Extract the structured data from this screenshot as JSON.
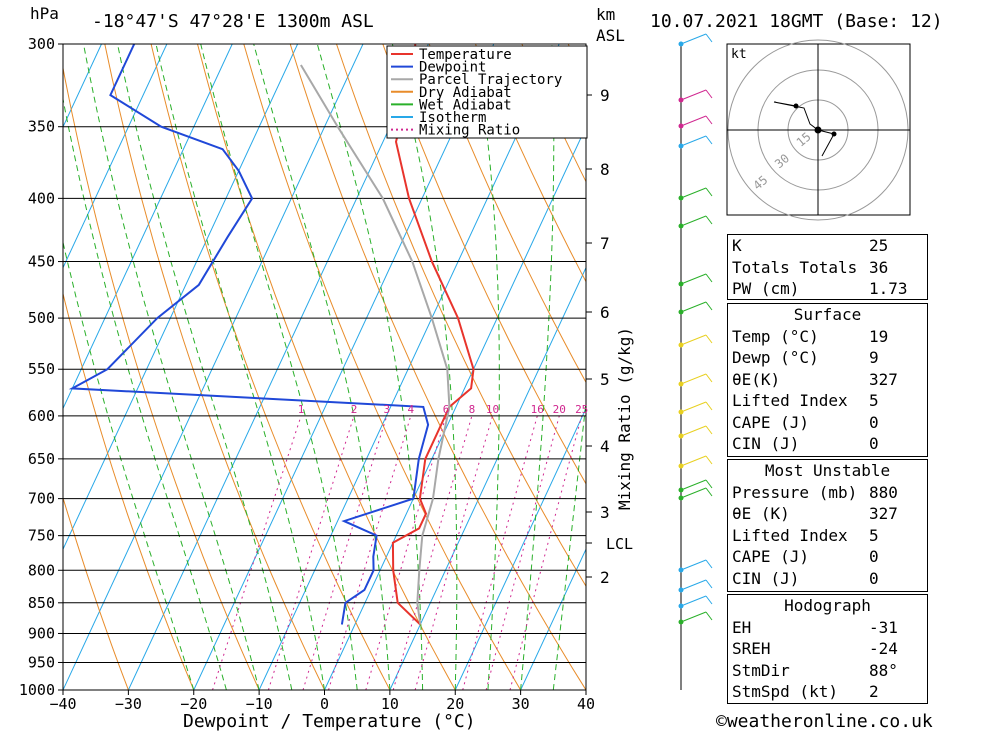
{
  "header": {
    "left": "hPa",
    "location": "-18°47'S  47°28'E  1300m  ASL",
    "km": "km",
    "asl": "ASL",
    "datetime": "10.07.2021  18GMT  (Base: 12)"
  },
  "chart_data": {
    "type": "skew-t",
    "pressure_levels": [
      300,
      350,
      400,
      450,
      500,
      550,
      600,
      650,
      700,
      750,
      800,
      850,
      900,
      950,
      1000
    ],
    "temperature_ticks": [
      -40,
      -30,
      -20,
      -10,
      0,
      10,
      20,
      30,
      40
    ],
    "xlabel": "Dewpoint / Temperature (°C)",
    "ylabel_left": "hPa",
    "ylabel_right": "Mixing Ratio (g/kg)",
    "km_ticks": [
      "9",
      "8",
      "7",
      "6",
      "5",
      "4",
      "3",
      "2"
    ],
    "lcl_label": "LCL",
    "mixing_ratio_labels": [
      "1",
      "2",
      "3",
      "4",
      "6",
      "8",
      "10",
      "16",
      "20",
      "25"
    ],
    "legend": [
      {
        "label": "Temperature",
        "color": "#e8342c"
      },
      {
        "label": "Dewpoint",
        "color": "#2048d8"
      },
      {
        "label": "Parcel Trajectory",
        "color": "#a8a8a8"
      },
      {
        "label": "Dry Adiabat",
        "color": "#e88c2a"
      },
      {
        "label": "Wet Adiabat",
        "color": "#2ab02a"
      },
      {
        "label": "Isotherm",
        "color": "#28a8e8"
      },
      {
        "label": "Mixing Ratio",
        "color": "#d02890"
      }
    ],
    "series": [
      {
        "name": "Temperature",
        "color": "#e8342c",
        "points": [
          [
            -32,
            300
          ],
          [
            -29,
            330
          ],
          [
            -28.5,
            350
          ],
          [
            -28,
            360
          ],
          [
            -22,
            400
          ],
          [
            -14,
            450
          ],
          [
            -6,
            500
          ],
          [
            0,
            550
          ],
          [
            1,
            570
          ],
          [
            -1,
            590
          ],
          [
            -1,
            610
          ],
          [
            -1,
            650
          ],
          [
            1,
            700
          ],
          [
            3,
            720
          ],
          [
            3,
            740
          ],
          [
            0,
            760
          ],
          [
            2,
            800
          ],
          [
            5,
            850
          ],
          [
            10,
            885
          ]
        ]
      },
      {
        "name": "Dewpoint",
        "color": "#2048d8",
        "points": [
          [
            -75,
            300
          ],
          [
            -75,
            330
          ],
          [
            -65,
            350
          ],
          [
            -54,
            365
          ],
          [
            -50,
            380
          ],
          [
            -46,
            400
          ],
          [
            -47,
            430
          ],
          [
            -48,
            470
          ],
          [
            -52,
            500
          ],
          [
            -56,
            550
          ],
          [
            -60,
            570
          ],
          [
            -5,
            590
          ],
          [
            -3,
            610
          ],
          [
            -2,
            650
          ],
          [
            0,
            700
          ],
          [
            -9,
            730
          ],
          [
            -3,
            750
          ],
          [
            -2,
            780
          ],
          [
            -1,
            800
          ],
          [
            -1,
            830
          ],
          [
            -3,
            850
          ],
          [
            -2,
            885
          ]
        ]
      },
      {
        "name": "Parcel Trajectory",
        "color": "#a8a8a8",
        "points": [
          [
            -48,
            312
          ],
          [
            -38,
            350
          ],
          [
            -26,
            400
          ],
          [
            -17,
            450
          ],
          [
            -10,
            500
          ],
          [
            -4,
            550
          ],
          [
            -1,
            590
          ],
          [
            1,
            650
          ],
          [
            3,
            700
          ],
          [
            4,
            750
          ],
          [
            6,
            800
          ],
          [
            8,
            850
          ],
          [
            10,
            885
          ]
        ]
      }
    ]
  },
  "hodograph": {
    "unit": "kt",
    "rings": [
      "15",
      "30",
      "45"
    ]
  },
  "indices": {
    "rows": [
      {
        "label": "K",
        "value": "25"
      },
      {
        "label": "Totals Totals",
        "value": "36"
      },
      {
        "label": "PW (cm)",
        "value": "1.73"
      }
    ]
  },
  "surface": {
    "title": "Surface",
    "rows": [
      {
        "label": "Temp (°C)",
        "value": "19"
      },
      {
        "label": "Dewp (°C)",
        "value": "9"
      },
      {
        "label": "θE(K)",
        "value": "327"
      },
      {
        "label": "Lifted Index",
        "value": "5"
      },
      {
        "label": "CAPE (J)",
        "value": "0"
      },
      {
        "label": "CIN (J)",
        "value": "0"
      }
    ]
  },
  "most_unstable": {
    "title": "Most Unstable",
    "rows": [
      {
        "label": "Pressure (mb)",
        "value": "880"
      },
      {
        "label": "θE (K)",
        "value": "327"
      },
      {
        "label": "Lifted Index",
        "value": "5"
      },
      {
        "label": "CAPE (J)",
        "value": "0"
      },
      {
        "label": "CIN (J)",
        "value": "0"
      }
    ]
  },
  "hodo_stats": {
    "title": "Hodograph",
    "rows": [
      {
        "label": "EH",
        "value": "-31"
      },
      {
        "label": "SREH",
        "value": "-24"
      },
      {
        "label": "StmDir",
        "value": "88°"
      },
      {
        "label": "StmSpd (kt)",
        "value": "2"
      }
    ]
  },
  "credit": "©weatheronline.co.uk"
}
